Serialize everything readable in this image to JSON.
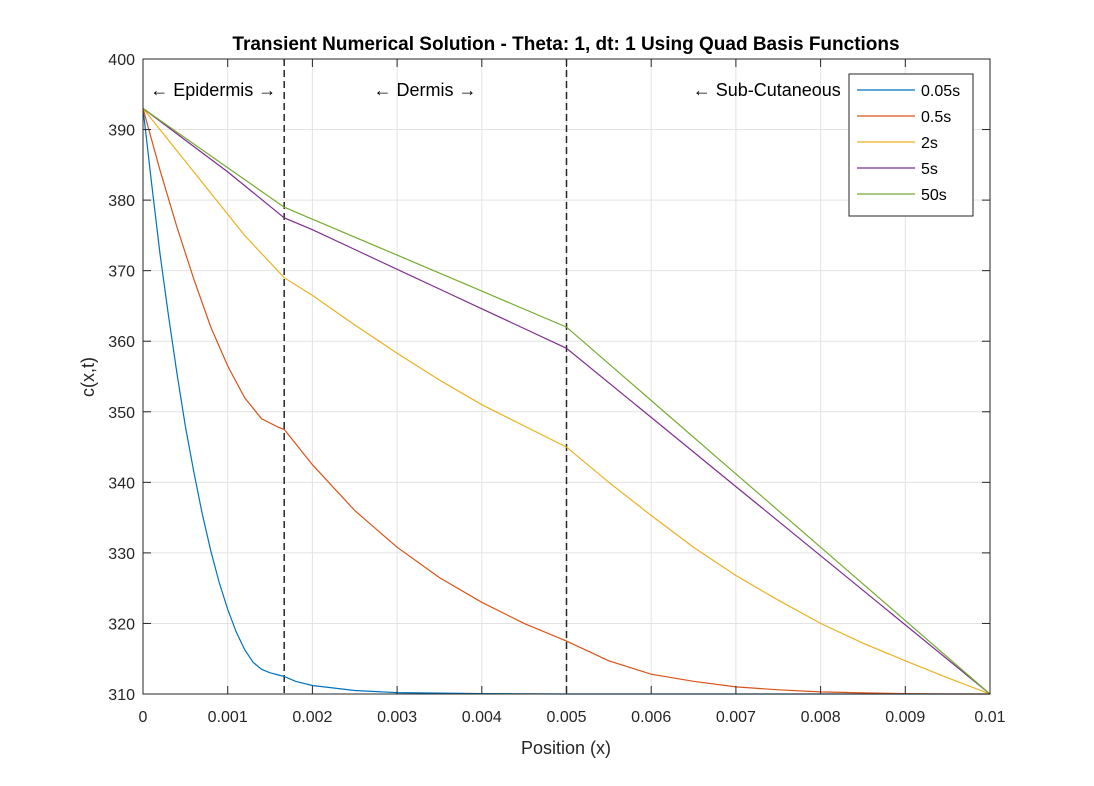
{
  "chart_data": {
    "type": "line",
    "title": "Transient Numerical Solution - Theta: 1, dt: 1 Using Quad Basis Functions",
    "xlabel": "Position (x)",
    "ylabel": "c(x,t)",
    "xlim": [
      0,
      0.01
    ],
    "ylim": [
      310,
      400
    ],
    "xticks": [
      0,
      0.001,
      0.002,
      0.003,
      0.004,
      0.005,
      0.006,
      0.007,
      0.008,
      0.009,
      0.01
    ],
    "xtick_labels": [
      "0",
      "0.001",
      "0.002",
      "0.003",
      "0.004",
      "0.005",
      "0.006",
      "0.007",
      "0.008",
      "0.009",
      "0.01"
    ],
    "yticks": [
      310,
      320,
      330,
      340,
      350,
      360,
      370,
      380,
      390,
      400
    ],
    "ytick_labels": [
      "310",
      "320",
      "330",
      "340",
      "350",
      "360",
      "370",
      "380",
      "390",
      "400"
    ],
    "grid": true,
    "legend_position": "top-right",
    "layer_boundaries": [
      0.001667,
      0.005
    ],
    "annotations": [
      {
        "text": "← Epidermis →",
        "x": 0.00083,
        "y": 395.5
      },
      {
        "text": "← Dermis →",
        "x": 0.00333,
        "y": 395.5
      },
      {
        "text": "← Sub-Cutaneous →",
        "x": 0.0075,
        "y": 395.5
      }
    ],
    "series": [
      {
        "name": "0.05s",
        "color": "#0072BD",
        "x": [
          0,
          0.0001,
          0.0002,
          0.0003,
          0.0004,
          0.0005,
          0.0006,
          0.0007,
          0.0008,
          0.0009,
          0.001,
          0.0011,
          0.0012,
          0.0013,
          0.0014,
          0.0015,
          0.0016,
          0.001667,
          0.0018,
          0.002,
          0.0025,
          0.003,
          0.004,
          0.005,
          0.007,
          0.01
        ],
        "y": [
          393,
          382.5,
          372.5,
          363.7,
          355.5,
          348.0,
          341.5,
          335.5,
          330.3,
          325.8,
          322.0,
          318.8,
          316.3,
          314.5,
          313.5,
          313.0,
          312.7,
          312.5,
          311.8,
          311.2,
          310.5,
          310.2,
          310.05,
          310.0,
          310.0,
          310.0
        ]
      },
      {
        "name": "0.5s",
        "color": "#D95319",
        "x": [
          0,
          0.0002,
          0.0004,
          0.0006,
          0.0008,
          0.001,
          0.0012,
          0.0014,
          0.0016,
          0.001667,
          0.002,
          0.0025,
          0.003,
          0.0035,
          0.004,
          0.0045,
          0.005,
          0.0055,
          0.006,
          0.0065,
          0.007,
          0.0075,
          0.008,
          0.0085,
          0.009,
          0.0095,
          0.01
        ],
        "y": [
          393,
          384.3,
          376.2,
          368.8,
          362.0,
          356.5,
          352.0,
          349.0,
          347.8,
          347.5,
          342.5,
          336.0,
          330.8,
          326.5,
          323.0,
          320.0,
          317.5,
          314.7,
          312.8,
          311.8,
          311.0,
          310.6,
          310.3,
          310.15,
          310.05,
          310.0,
          310.0
        ]
      },
      {
        "name": "2s",
        "color": "#EDB120",
        "x": [
          0,
          0.0004,
          0.0008,
          0.0012,
          0.001667,
          0.002,
          0.0025,
          0.003,
          0.0035,
          0.004,
          0.0045,
          0.005,
          0.0055,
          0.006,
          0.0065,
          0.007,
          0.0075,
          0.008,
          0.0085,
          0.009,
          0.0095,
          0.01
        ],
        "y": [
          393,
          387.0,
          381.0,
          375.0,
          369.0,
          366.5,
          362.3,
          358.3,
          354.5,
          351.0,
          348.0,
          345.0,
          340.0,
          335.3,
          330.8,
          326.8,
          323.3,
          320.0,
          317.2,
          314.7,
          312.3,
          310.0
        ]
      },
      {
        "name": "5s",
        "color": "#7E2F8E",
        "x": [
          0,
          0.0005,
          0.001,
          0.001667,
          0.002,
          0.0025,
          0.003,
          0.0035,
          0.004,
          0.0045,
          0.005,
          0.006,
          0.007,
          0.008,
          0.009,
          0.01
        ],
        "y": [
          393,
          388.5,
          384.0,
          377.5,
          375.8,
          373.0,
          370.2,
          367.4,
          364.6,
          361.8,
          359.0,
          349.2,
          339.4,
          329.6,
          319.8,
          310.0
        ]
      },
      {
        "name": "50s",
        "color": "#77AC30",
        "x": [
          0,
          0.0005,
          0.001,
          0.001667,
          0.002,
          0.003,
          0.004,
          0.005,
          0.006,
          0.007,
          0.008,
          0.009,
          0.01
        ],
        "y": [
          393,
          388.8,
          384.6,
          379.0,
          377.3,
          372.2,
          367.1,
          362.0,
          351.6,
          341.2,
          330.8,
          320.4,
          310.0
        ]
      }
    ]
  }
}
